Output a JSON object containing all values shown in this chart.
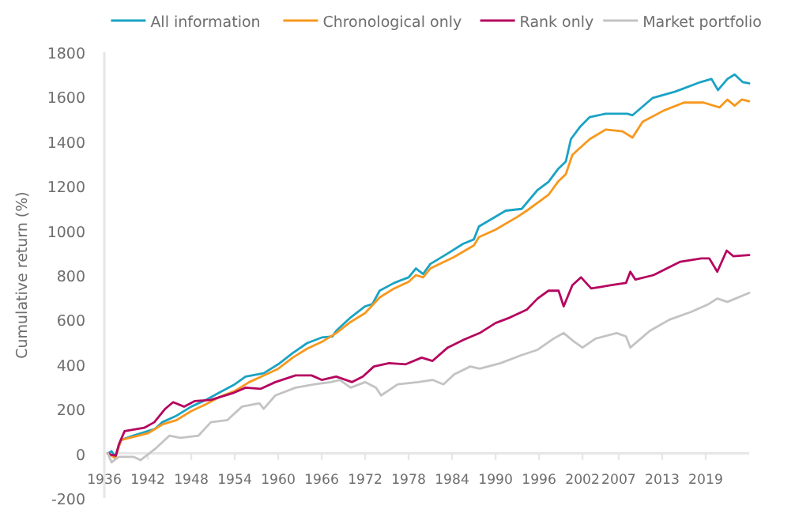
{
  "chart_data": {
    "type": "line",
    "ylabel": "Cumulative return (%)",
    "xlim": [
      1936,
      2025
    ],
    "ylim": [
      -200,
      1800
    ],
    "xticks": [
      1936,
      1942,
      1948,
      1954,
      1960,
      1966,
      1972,
      1978,
      1984,
      1990,
      1996,
      2002,
      2007,
      2013,
      2019
    ],
    "yticks": [
      -200,
      0,
      200,
      400,
      600,
      800,
      1000,
      1200,
      1400,
      1600,
      1800
    ],
    "grid": false,
    "legend": "top",
    "line_style": "solid",
    "marker": "none",
    "series": [
      {
        "name": "All information",
        "color": "#1aa3c4",
        "x": [
          1936.5,
          1937,
          1937.5,
          1938.3,
          1940,
          1942,
          1943,
          1944,
          1946,
          1948,
          1950,
          1952,
          1954,
          1955.5,
          1958,
          1960,
          1962,
          1964,
          1966,
          1967.5,
          1968,
          1970,
          1972,
          1973,
          1974,
          1976,
          1978,
          1979,
          1980,
          1981,
          1983.4,
          1985.5,
          1987,
          1987.7,
          1991.4,
          1993.6,
          1995.8,
          1997.3,
          1998.6,
          1999.7,
          2000.4,
          2001.7,
          2003,
          2005.2,
          2008.2,
          2008.9,
          2011.7,
          2014.8,
          2018.3,
          2019.8,
          2020.7,
          2022,
          2023,
          2024.1,
          2025
        ],
        "values": [
          0,
          10,
          -15,
          60,
          80,
          100,
          110,
          140,
          170,
          210,
          240,
          275,
          310,
          345,
          360,
          400,
          450,
          495,
          520,
          525,
          550,
          610,
          660,
          670,
          730,
          765,
          790,
          830,
          805,
          850,
          897,
          940,
          960,
          1018,
          1089,
          1097,
          1182,
          1218,
          1275,
          1310,
          1410,
          1467,
          1509,
          1524,
          1524,
          1517,
          1595,
          1623,
          1666,
          1680,
          1630,
          1680,
          1700,
          1666,
          1660
        ]
      },
      {
        "name": "Chronological only",
        "color": "#f7981d",
        "x": [
          1936.5,
          1937.5,
          1938.3,
          1942,
          1944,
          1946,
          1948,
          1950,
          1952,
          1954,
          1956,
          1958,
          1960,
          1962,
          1964,
          1966,
          1968,
          1970,
          1972,
          1974,
          1976,
          1978,
          1979,
          1980,
          1981,
          1984.2,
          1987,
          1987.7,
          1990,
          1993,
          1994.3,
          1997.3,
          1998.6,
          1999.7,
          2000.6,
          2001.3,
          2003,
          2005.2,
          2007.5,
          2008.9,
          2010.3,
          2013.2,
          2016,
          2018.7,
          2020.9,
          2022,
          2023,
          2024,
          2025
        ],
        "values": [
          0,
          -20,
          60,
          90,
          130,
          150,
          190,
          220,
          255,
          280,
          320,
          350,
          380,
          430,
          470,
          500,
          540,
          590,
          630,
          700,
          740,
          770,
          800,
          790,
          830,
          880,
          933,
          970,
          1004,
          1061,
          1089,
          1160,
          1218,
          1253,
          1339,
          1360,
          1410,
          1453,
          1445,
          1417,
          1488,
          1538,
          1574,
          1574,
          1552,
          1587,
          1560,
          1588,
          1580
        ]
      },
      {
        "name": "Rank only",
        "color": "#b5055f",
        "x": [
          1936.5,
          1936.9,
          1937.6,
          1938,
          1938.8,
          1941.5,
          1942.9,
          1944.4,
          1945.5,
          1947,
          1948.5,
          1950.7,
          1953.7,
          1955.5,
          1957.6,
          1959.6,
          1962.4,
          1964.6,
          1966,
          1968,
          1970.2,
          1971.7,
          1973.2,
          1975.3,
          1977.6,
          1979.8,
          1981.3,
          1983.4,
          1985.6,
          1987.8,
          1990,
          1992,
          1994.3,
          1995.8,
          1997.3,
          1998.7,
          1999.4,
          2000.6,
          2001.8,
          2003.2,
          2006,
          2008,
          2008.6,
          2009.3,
          2011.8,
          2015.5,
          2018.4,
          2019.5,
          2020.6,
          2021.9,
          2022.8,
          2025
        ],
        "values": [
          0,
          -5,
          -10,
          40,
          100,
          115,
          140,
          200,
          230,
          210,
          235,
          240,
          270,
          295,
          290,
          320,
          350,
          350,
          330,
          345,
          320,
          345,
          390,
          405,
          400,
          430,
          415,
          475,
          510,
          540,
          585,
          610,
          645,
          695,
          730,
          730,
          660,
          755,
          790,
          740,
          755,
          765,
          815,
          780,
          800,
          860,
          875,
          875,
          815,
          910,
          885,
          890
        ]
      },
      {
        "name": "Market portfolio",
        "color": "#c3c3c3",
        "x": [
          1936.5,
          1937,
          1938,
          1940,
          1941,
          1943,
          1945,
          1946.5,
          1949,
          1950.7,
          1953,
          1955,
          1957.4,
          1958,
          1959.6,
          1962.4,
          1965,
          1967.3,
          1968.5,
          1970,
          1972,
          1973.5,
          1974.2,
          1976.5,
          1979.3,
          1981.3,
          1982.8,
          1984.3,
          1986.5,
          1987.8,
          1990.7,
          1993.5,
          1995.8,
          1998,
          1999.4,
          2000.9,
          2002,
          2003.8,
          2006.7,
          2008,
          2008.6,
          2011.3,
          2014,
          2017,
          2019.4,
          2020.6,
          2022,
          2025
        ],
        "values": [
          0,
          -40,
          -15,
          -15,
          -30,
          20,
          80,
          70,
          80,
          140,
          150,
          210,
          225,
          200,
          260,
          295,
          310,
          320,
          330,
          295,
          320,
          295,
          260,
          310,
          320,
          330,
          310,
          355,
          390,
          380,
          405,
          440,
          465,
          515,
          540,
          500,
          475,
          515,
          540,
          525,
          475,
          550,
          600,
          635,
          670,
          695,
          680,
          720
        ]
      }
    ]
  }
}
